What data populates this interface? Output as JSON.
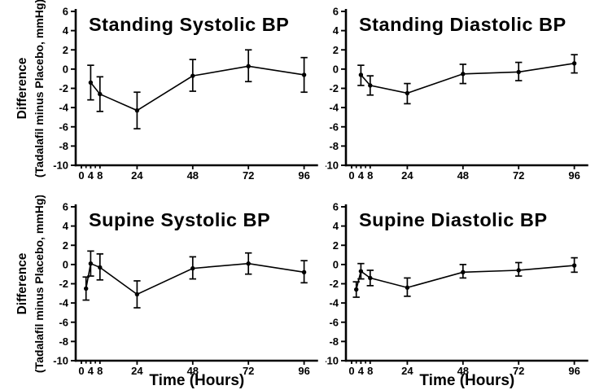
{
  "figure": {
    "background_color": "#ffffff",
    "ink_color": "#000000",
    "y_axis_label_line1": "Difference",
    "y_axis_label_line2": "(Tadalafil minus Placebo, mmHg)",
    "x_axis_label": "Time (Hours)",
    "y_ticks": [
      6,
      4,
      2,
      0,
      -2,
      -4,
      -6,
      -8,
      -10
    ],
    "x_labeled_ticks": [
      0,
      4,
      8,
      24,
      48,
      72,
      96
    ],
    "x_minor_ticks": [
      2,
      6
    ]
  },
  "chart_data": [
    {
      "type": "line",
      "title": "Standing Systolic BP",
      "position": "top-left",
      "xlabel": "",
      "ylabel": "Difference (Tadalafil minus Placebo, mmHg)",
      "xlim": [
        0,
        104
      ],
      "ylim": [
        -10,
        6
      ],
      "grid": false,
      "error_bars": true,
      "x": [
        4,
        8,
        24,
        48,
        72,
        96
      ],
      "y": [
        -1.4,
        -2.6,
        -4.3,
        -0.7,
        0.3,
        -0.6
      ],
      "err_low": [
        -3.2,
        -4.4,
        -6.2,
        -2.3,
        -1.3,
        -2.4
      ],
      "err_high": [
        0.4,
        -0.8,
        -2.4,
        1.0,
        2.0,
        1.2
      ]
    },
    {
      "type": "line",
      "title": "Standing Diastolic BP",
      "position": "top-right",
      "xlabel": "",
      "ylabel": "",
      "xlim": [
        0,
        104
      ],
      "ylim": [
        -10,
        6
      ],
      "grid": false,
      "error_bars": true,
      "x": [
        4,
        8,
        24,
        48,
        72,
        96
      ],
      "y": [
        -0.6,
        -1.7,
        -2.5,
        -0.5,
        -0.3,
        0.6
      ],
      "err_low": [
        -1.7,
        -2.7,
        -3.6,
        -1.5,
        -1.2,
        -0.4
      ],
      "err_high": [
        0.4,
        -0.7,
        -1.5,
        0.5,
        0.7,
        1.5
      ]
    },
    {
      "type": "line",
      "title": "Supine Systolic BP",
      "position": "bottom-left",
      "xlabel": "Time (Hours)",
      "ylabel": "Difference (Tadalafil minus Placebo, mmHg)",
      "xlim": [
        0,
        104
      ],
      "ylim": [
        -10,
        6
      ],
      "grid": false,
      "error_bars": true,
      "x": [
        2,
        4,
        8,
        24,
        48,
        72,
        96
      ],
      "y": [
        -2.5,
        0.1,
        -0.3,
        -3.1,
        -0.4,
        0.1,
        -0.8
      ],
      "err_low": [
        -3.7,
        -1.2,
        -1.6,
        -4.5,
        -1.5,
        -1.0,
        -1.9
      ],
      "err_high": [
        -1.3,
        1.4,
        1.1,
        -1.7,
        0.8,
        1.2,
        0.4
      ]
    },
    {
      "type": "line",
      "title": "Supine Diastolic BP",
      "position": "bottom-right",
      "xlabel": "Time (Hours)",
      "ylabel": "",
      "xlim": [
        0,
        104
      ],
      "ylim": [
        -10,
        6
      ],
      "grid": false,
      "error_bars": true,
      "x": [
        2,
        4,
        8,
        24,
        48,
        72,
        96
      ],
      "y": [
        -2.6,
        -0.7,
        -1.4,
        -2.4,
        -0.8,
        -0.6,
        -0.1
      ],
      "err_low": [
        -3.4,
        -1.5,
        -2.2,
        -3.3,
        -1.4,
        -1.2,
        -0.8
      ],
      "err_high": [
        -1.8,
        0.1,
        -0.6,
        -1.4,
        0.0,
        0.2,
        0.7
      ]
    }
  ]
}
